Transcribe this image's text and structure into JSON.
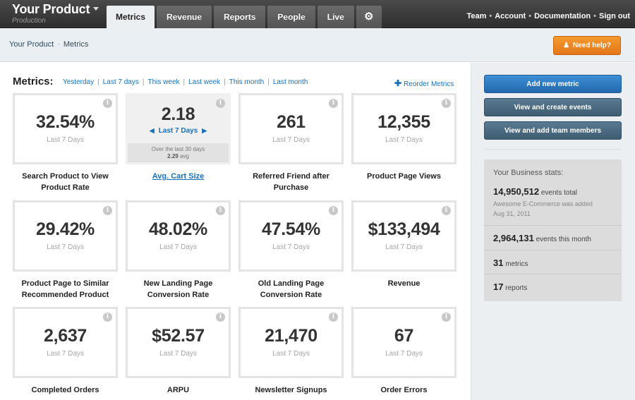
{
  "topbar": {
    "brand_title": "Your Product",
    "brand_sub": "Production",
    "tabs": [
      "Metrics",
      "Revenue",
      "Reports",
      "People",
      "Live"
    ],
    "nav": [
      "Team",
      "Account",
      "Documentation",
      "Sign out"
    ]
  },
  "breadcrumb": {
    "root": "Your Product",
    "current": "Metrics"
  },
  "help_button": "Need help?",
  "main": {
    "heading": "Metrics:",
    "ranges": [
      "Yesterday",
      "Last 7 days",
      "This week",
      "Last week",
      "This month",
      "Last month"
    ],
    "reorder": "Reorder Metrics",
    "metrics": [
      {
        "value": "32.54%",
        "period": "Last 7 Days",
        "label": "Search Product to View Product Rate"
      },
      {
        "value": "2.18",
        "period": "Last 7 Days",
        "label": "Avg. Cart Size",
        "foot_line1": "Over the last 30 days",
        "foot_line2_val": "2.29",
        "foot_line2_suffix": " avg"
      },
      {
        "value": "261",
        "period": "Last 7 Days",
        "label": "Referred Friend after Purchase"
      },
      {
        "value": "12,355",
        "period": "Last 7 Days",
        "label": "Product Page Views"
      },
      {
        "value": "29.42%",
        "period": "Last 7 Days",
        "label": "Product Page to Similar Recommended Product"
      },
      {
        "value": "48.02%",
        "period": "Last 7 Days",
        "label": "New Landing Page Conversion Rate"
      },
      {
        "value": "47.54%",
        "period": "Last 7 Days",
        "label": "Old Landing Page Conversion Rate"
      },
      {
        "value": "$133,494",
        "period": "Last 7 Days",
        "label": "Revenue"
      },
      {
        "value": "2,637",
        "period": "Last 7 Days",
        "label": "Completed Orders"
      },
      {
        "value": "$52.57",
        "period": "Last 7 Days",
        "label": "ARPU"
      },
      {
        "value": "21,470",
        "period": "Last 7 Days",
        "label": "Newsletter Signups"
      },
      {
        "value": "67",
        "period": "Last 7 Days",
        "label": "Order Errors"
      }
    ]
  },
  "sidebar": {
    "buttons": [
      "Add new metric",
      "View and create events",
      "View and add team members"
    ],
    "stats_heading": "Your Business stats:",
    "stats": [
      {
        "big": "14,950,512",
        "small": " events total",
        "note1": "Awesome E-Commerce was added",
        "note2": "Aug 31, 2011"
      },
      {
        "big": "2,964,131",
        "small": " events this month"
      },
      {
        "big": "31",
        "small": " metrics"
      },
      {
        "big": "17",
        "small": " reports"
      }
    ]
  },
  "colors": {
    "accent_blue": "#1a6fb5",
    "help_orange": "#f08a24",
    "topbar": "#3a3a3a"
  }
}
